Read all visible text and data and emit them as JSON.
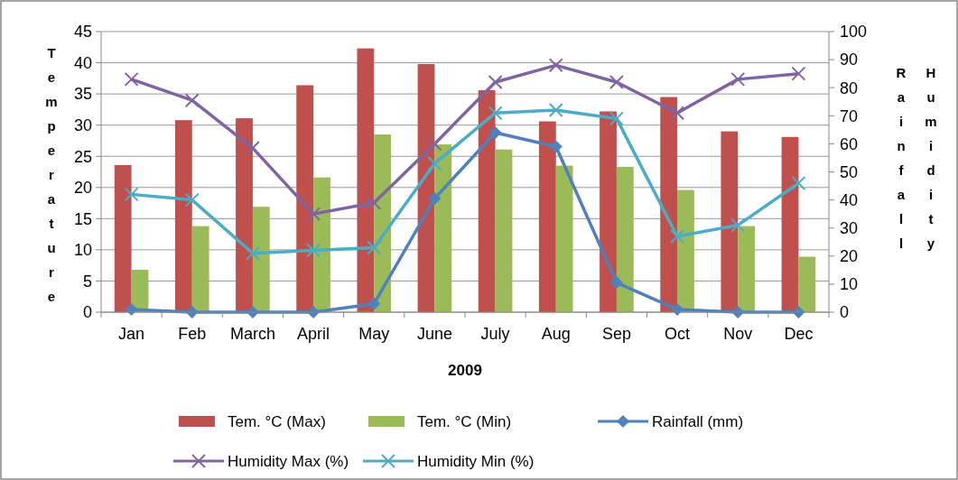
{
  "chart_data": {
    "type": "bar",
    "xlabel": "2009",
    "ylabel": "Temperature",
    "y2label": "Rainfall",
    "annotations": [
      "Humidity"
    ],
    "categories": [
      "Jan",
      "Feb",
      "March",
      "April",
      "May",
      "June",
      "July",
      "Aug",
      "Sep",
      "Oct",
      "Nov",
      "Dec"
    ],
    "series": [
      {
        "name": "Tem. °C (Max)",
        "color": "#c0504d",
        "values": [
          23.6,
          30.8,
          31.1,
          36.4,
          42.3,
          39.8,
          35.6,
          30.6,
          32.2,
          34.5,
          29.0,
          28.1
        ]
      },
      {
        "name": "Tem. °C (Min)",
        "color": "#9bbb59",
        "values": [
          6.8,
          13.8,
          16.9,
          21.6,
          28.5,
          26.9,
          26.1,
          23.5,
          23.3,
          19.6,
          13.8,
          8.9
        ]
      },
      {
        "name": "Rainfall (mm)",
        "type": "line",
        "axis": "y2",
        "marker": "diamond",
        "color": "#4f81bd",
        "values": [
          1,
          0,
          0,
          0,
          3,
          40.5,
          64,
          59,
          10.5,
          1,
          0,
          0
        ]
      },
      {
        "name": "Humidity Max (%)",
        "type": "line",
        "axis": "y2",
        "marker": "cross",
        "color": "#8064a2",
        "values": [
          83,
          75.5,
          58.5,
          35,
          39,
          60,
          82,
          88,
          82,
          71,
          83,
          85
        ]
      },
      {
        "name": "Humidity Min (%)",
        "type": "line",
        "axis": "y2",
        "marker": "cross",
        "color": "#4bacc6",
        "values": [
          42,
          40,
          21,
          22,
          23,
          53,
          71,
          72,
          69,
          27,
          31,
          46
        ]
      }
    ],
    "ylim": [
      0,
      45
    ],
    "yticks": [
      0,
      5,
      10,
      15,
      20,
      25,
      30,
      35,
      40,
      45
    ],
    "y2lim": [
      0,
      100
    ],
    "y2ticks": [
      0,
      10,
      20,
      30,
      40,
      50,
      60,
      70,
      80,
      90,
      100
    ],
    "grid": "y",
    "legend": "bottom",
    "line_style": "solid"
  }
}
